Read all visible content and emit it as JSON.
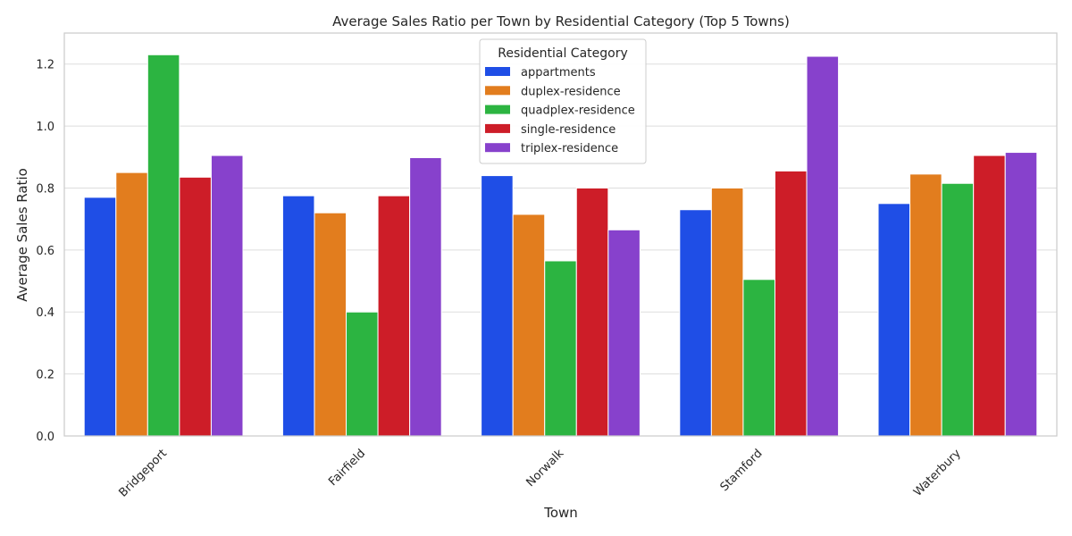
{
  "chart_data": {
    "type": "bar",
    "title": "Average Sales Ratio per Town by Residential Category (Top 5 Towns)",
    "xlabel": "Town",
    "ylabel": "Average Sales Ratio",
    "categories": [
      "Bridgeport",
      "Fairfield",
      "Norwalk",
      "Stamford",
      "Waterbury"
    ],
    "ylim": [
      0,
      1.3
    ],
    "yticks": [
      0.0,
      0.2,
      0.4,
      0.6,
      0.8,
      1.0,
      1.2
    ],
    "ytick_labels": [
      "0.0",
      "0.2",
      "0.4",
      "0.6",
      "0.8",
      "1.0",
      "1.2"
    ],
    "grid": true,
    "legend": {
      "title": "Residential Category",
      "placement": "top-center"
    },
    "series": [
      {
        "name": "appartments",
        "color": "#1f4ee6",
        "values": [
          0.77,
          0.775,
          0.84,
          0.73,
          0.75
        ]
      },
      {
        "name": "duplex-residence",
        "color": "#e27d1e",
        "values": [
          0.85,
          0.72,
          0.715,
          0.8,
          0.845
        ]
      },
      {
        "name": "quadplex-residence",
        "color": "#2cb441",
        "values": [
          1.23,
          0.4,
          0.565,
          0.505,
          0.815
        ]
      },
      {
        "name": "single-residence",
        "color": "#cd1d28",
        "values": [
          0.835,
          0.775,
          0.8,
          0.855,
          0.905
        ]
      },
      {
        "name": "triplex-residence",
        "color": "#8741cc",
        "values": [
          0.905,
          0.898,
          0.665,
          1.225,
          0.915
        ]
      }
    ]
  }
}
